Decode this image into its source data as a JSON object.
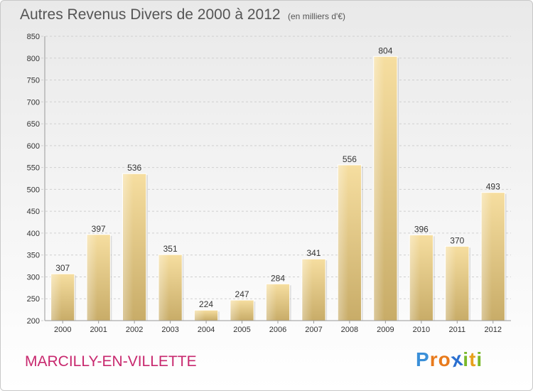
{
  "chart_data": {
    "type": "bar",
    "title": "Autres Revenus Divers de 2000 à 2012",
    "subtitle": "(en milliers d'€)",
    "xlabel": "",
    "ylabel": "",
    "categories": [
      "2000",
      "2001",
      "2002",
      "2003",
      "2004",
      "2005",
      "2006",
      "2007",
      "2008",
      "2009",
      "2010",
      "2011",
      "2012"
    ],
    "values": [
      307,
      397,
      536,
      351,
      224,
      247,
      284,
      341,
      556,
      804,
      396,
      370,
      493
    ],
    "ylim": [
      200,
      850
    ],
    "yticks": [
      200,
      250,
      300,
      350,
      400,
      450,
      500,
      550,
      600,
      650,
      700,
      750,
      800,
      850
    ],
    "grid": true,
    "legend": "none",
    "bar_color": "#e8cc80"
  },
  "footer": {
    "commune": "MARCILLY-EN-VILLETTE",
    "logo_letters": [
      "P",
      "r",
      "o",
      "x",
      "i",
      "t",
      "i"
    ],
    "logo_colors": [
      "#3a8fd8",
      "#e87a1c",
      "#e87a1c",
      "#2a6fd0",
      "#7ab82a",
      "#e8a01c",
      "#7ab82a"
    ]
  }
}
